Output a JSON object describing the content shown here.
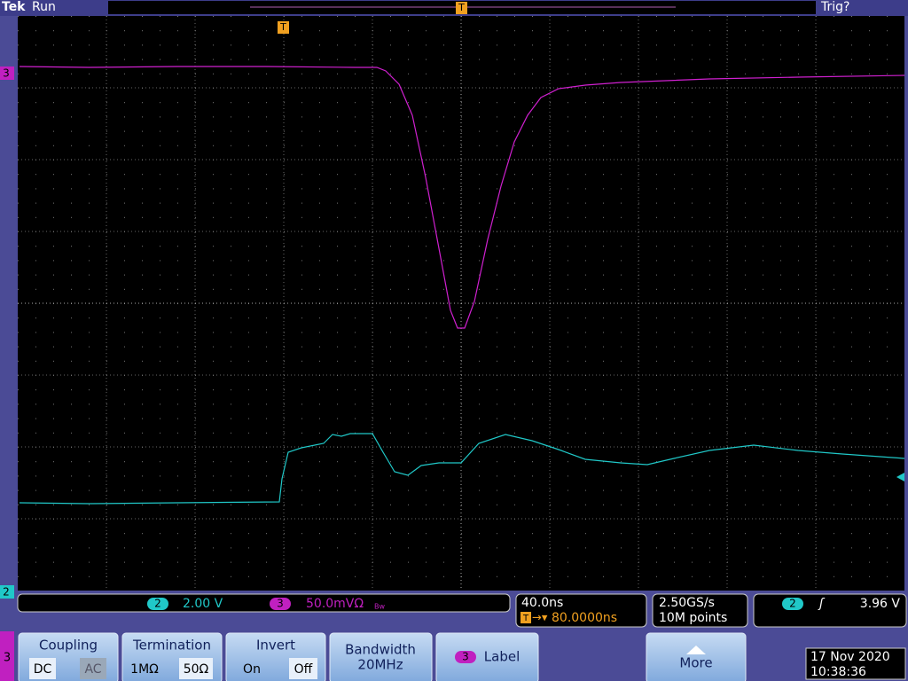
{
  "header": {
    "brand": "Tek",
    "status": "Run",
    "trigger_status": "Trig?"
  },
  "markers": {
    "trigger": "T",
    "ch3": "3",
    "ch2": "2"
  },
  "status_bar": {
    "ch2": {
      "channel": "2",
      "scale": "2.00 V"
    },
    "ch3": {
      "channel": "3",
      "scale": "50.0mVΩ",
      "bandwidth_flag": "Bw"
    },
    "timebase": {
      "scale": "40.0ns",
      "position": "80.0000ns"
    },
    "acquisition": {
      "sample_rate": "2.50GS/s",
      "record_length": "10M points"
    },
    "trigger": {
      "channel": "2",
      "level": "3.96 V"
    }
  },
  "menu": {
    "channel": "3",
    "buttons": [
      {
        "label": "Coupling",
        "options": [
          "DC",
          "AC"
        ]
      },
      {
        "label": "Termination",
        "options": [
          "1MΩ",
          "50Ω"
        ]
      },
      {
        "label": "Invert",
        "options": [
          "On",
          "Off"
        ]
      },
      {
        "label": "Bandwidth",
        "value": "20MHz"
      },
      {
        "channel": "3",
        "label": "Label"
      },
      {
        "label": "More"
      }
    ]
  },
  "datetime": {
    "date": "17 Nov 2020",
    "time": "10:38:36"
  }
}
